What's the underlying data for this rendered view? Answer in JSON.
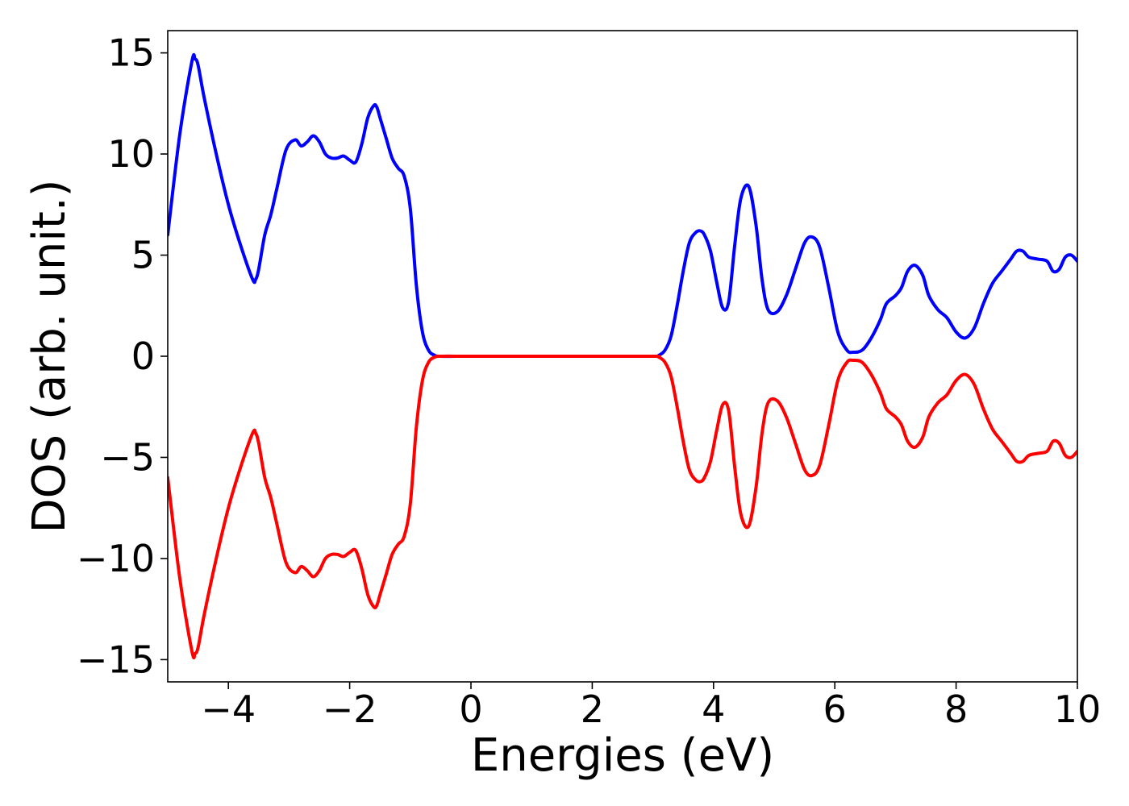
{
  "chart_data": {
    "type": "line",
    "title": "",
    "xlabel": "Energies (eV)",
    "ylabel": "DOS (arb. unit.)",
    "xlim": [
      -5,
      10
    ],
    "ylim": [
      -16.1,
      16.1
    ],
    "grid": false,
    "legend": "none",
    "xticks": [
      -4,
      -2,
      0,
      2,
      4,
      6,
      8,
      10
    ],
    "xtick_labels": [
      "−4",
      "−2",
      "0",
      "2",
      "4",
      "6",
      "8",
      "10"
    ],
    "yticks": [
      15,
      10,
      5,
      0,
      -5,
      -10,
      -15
    ],
    "ytick_labels": [
      "15",
      "10",
      "5",
      "0",
      "−5",
      "−10",
      "−15"
    ],
    "series": [
      {
        "color": "#0000ff",
        "x": [
          -5.0,
          -4.8,
          -4.6,
          -4.55,
          -4.5,
          -4.4,
          -4.2,
          -4.0,
          -3.8,
          -3.6,
          -3.55,
          -3.5,
          -3.4,
          -3.3,
          -3.2,
          -3.05,
          -2.9,
          -2.8,
          -2.7,
          -2.6,
          -2.5,
          -2.4,
          -2.3,
          -2.2,
          -2.1,
          -2.0,
          -1.9,
          -1.8,
          -1.7,
          -1.6,
          -1.55,
          -1.5,
          -1.4,
          -1.3,
          -1.2,
          -1.1,
          -1.0,
          -0.9,
          -0.8,
          -0.7,
          -0.6,
          -0.5,
          0.0,
          1.0,
          2.0,
          3.0,
          3.1,
          3.2,
          3.3,
          3.4,
          3.5,
          3.6,
          3.7,
          3.78,
          3.85,
          3.95,
          4.05,
          4.15,
          4.25,
          4.35,
          4.45,
          4.58,
          4.7,
          4.8,
          4.9,
          5.05,
          5.2,
          5.35,
          5.5,
          5.62,
          5.75,
          5.9,
          6.05,
          6.2,
          6.3,
          6.45,
          6.6,
          6.75,
          6.85,
          7.0,
          7.1,
          7.2,
          7.32,
          7.45,
          7.55,
          7.7,
          7.85,
          8.0,
          8.15,
          8.3,
          8.45,
          8.6,
          8.75,
          8.9,
          9.0,
          9.1,
          9.2,
          9.35,
          9.5,
          9.6,
          9.7,
          9.8,
          9.9,
          10.0
        ],
        "y": [
          6.0,
          11.0,
          14.6,
          14.7,
          14.4,
          12.8,
          10.0,
          7.5,
          5.5,
          3.8,
          3.8,
          4.3,
          6.0,
          7.0,
          8.3,
          10.2,
          10.7,
          10.4,
          10.6,
          10.9,
          10.6,
          10.0,
          9.8,
          9.8,
          9.9,
          9.7,
          9.6,
          10.5,
          11.8,
          12.4,
          12.3,
          11.8,
          10.8,
          9.8,
          9.3,
          8.9,
          7.3,
          3.5,
          1.2,
          0.3,
          0.05,
          0.0,
          0.0,
          0.0,
          0.0,
          0.0,
          0.05,
          0.3,
          1.0,
          2.5,
          4.2,
          5.6,
          6.1,
          6.2,
          6.0,
          5.2,
          3.7,
          2.4,
          2.7,
          5.5,
          7.8,
          8.4,
          6.5,
          3.8,
          2.3,
          2.2,
          3.0,
          4.3,
          5.6,
          5.9,
          5.4,
          3.4,
          1.2,
          0.3,
          0.2,
          0.3,
          0.9,
          1.8,
          2.6,
          3.0,
          3.4,
          4.2,
          4.5,
          4.0,
          3.0,
          2.3,
          1.9,
          1.2,
          0.9,
          1.4,
          2.6,
          3.6,
          4.2,
          4.8,
          5.2,
          5.2,
          4.9,
          4.8,
          4.7,
          4.2,
          4.3,
          4.9,
          5.0,
          4.7
        ]
      },
      {
        "color": "#ff0000",
        "x": [
          -5.0,
          -4.8,
          -4.6,
          -4.55,
          -4.5,
          -4.4,
          -4.2,
          -4.0,
          -3.8,
          -3.6,
          -3.55,
          -3.5,
          -3.4,
          -3.3,
          -3.2,
          -3.05,
          -2.9,
          -2.8,
          -2.7,
          -2.6,
          -2.5,
          -2.4,
          -2.3,
          -2.2,
          -2.1,
          -2.0,
          -1.9,
          -1.8,
          -1.7,
          -1.6,
          -1.55,
          -1.5,
          -1.4,
          -1.3,
          -1.2,
          -1.1,
          -1.0,
          -0.9,
          -0.8,
          -0.7,
          -0.6,
          -0.5,
          0.0,
          1.0,
          2.0,
          3.0,
          3.1,
          3.2,
          3.3,
          3.4,
          3.5,
          3.6,
          3.7,
          3.78,
          3.85,
          3.95,
          4.05,
          4.15,
          4.25,
          4.35,
          4.45,
          4.58,
          4.7,
          4.8,
          4.9,
          5.05,
          5.2,
          5.35,
          5.5,
          5.62,
          5.75,
          5.9,
          6.05,
          6.2,
          6.3,
          6.45,
          6.6,
          6.75,
          6.85,
          7.0,
          7.1,
          7.2,
          7.32,
          7.45,
          7.55,
          7.7,
          7.85,
          8.0,
          8.15,
          8.3,
          8.45,
          8.6,
          8.75,
          8.9,
          9.0,
          9.1,
          9.2,
          9.35,
          9.5,
          9.6,
          9.7,
          9.8,
          9.9,
          10.0
        ],
        "y": [
          -6.0,
          -11.0,
          -14.6,
          -14.7,
          -14.4,
          -12.8,
          -10.0,
          -7.5,
          -5.5,
          -3.8,
          -3.8,
          -4.3,
          -6.0,
          -7.0,
          -8.3,
          -10.2,
          -10.7,
          -10.4,
          -10.6,
          -10.9,
          -10.6,
          -10.0,
          -9.8,
          -9.8,
          -9.9,
          -9.7,
          -9.6,
          -10.5,
          -11.8,
          -12.4,
          -12.3,
          -11.8,
          -10.8,
          -9.8,
          -9.3,
          -8.9,
          -7.3,
          -3.5,
          -1.2,
          -0.3,
          -0.05,
          0.0,
          0.0,
          0.0,
          0.0,
          0.0,
          -0.05,
          -0.3,
          -1.0,
          -2.5,
          -4.2,
          -5.6,
          -6.1,
          -6.2,
          -6.0,
          -5.2,
          -3.7,
          -2.4,
          -2.7,
          -5.5,
          -7.8,
          -8.4,
          -6.5,
          -3.8,
          -2.3,
          -2.2,
          -3.0,
          -4.3,
          -5.6,
          -5.9,
          -5.4,
          -3.4,
          -1.2,
          -0.3,
          -0.2,
          -0.3,
          -0.9,
          -1.8,
          -2.6,
          -3.0,
          -3.4,
          -4.2,
          -4.5,
          -4.0,
          -3.0,
          -2.3,
          -1.9,
          -1.2,
          -0.9,
          -1.4,
          -2.6,
          -3.6,
          -4.2,
          -4.8,
          -5.2,
          -5.2,
          -4.9,
          -4.8,
          -4.7,
          -4.2,
          -4.3,
          -4.9,
          -5.0,
          -4.7
        ]
      }
    ]
  }
}
